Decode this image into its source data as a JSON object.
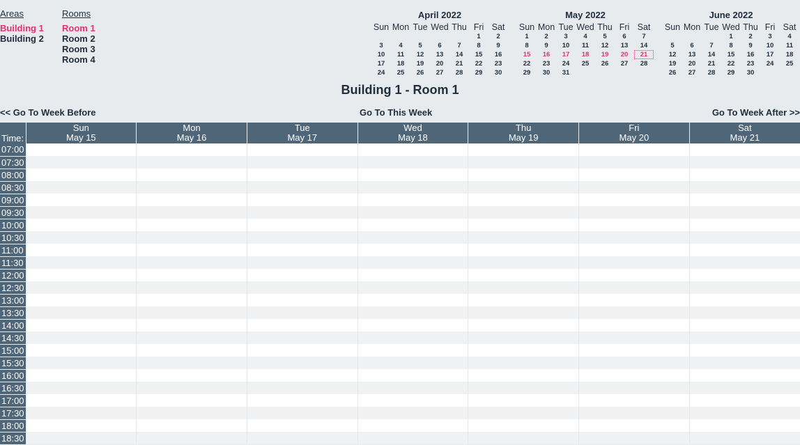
{
  "areas": {
    "header": "Areas",
    "items": [
      {
        "label": "Building 1",
        "selected": true
      },
      {
        "label": "Building 2",
        "selected": false
      }
    ]
  },
  "rooms": {
    "header": "Rooms",
    "items": [
      {
        "label": "Room 1",
        "selected": true
      },
      {
        "label": "Room 2",
        "selected": false
      },
      {
        "label": "Room 3",
        "selected": false
      },
      {
        "label": "Room 4",
        "selected": false
      }
    ]
  },
  "calendars": [
    {
      "title": "April 2022",
      "weekdays": [
        "Sun",
        "Mon",
        "Tue",
        "Wed",
        "Thu",
        "Fri",
        "Sat"
      ],
      "weeks": [
        [
          "",
          "",
          "",
          "",
          "",
          "1",
          "2"
        ],
        [
          "3",
          "4",
          "5",
          "6",
          "7",
          "8",
          "9"
        ],
        [
          "10",
          "11",
          "12",
          "13",
          "14",
          "15",
          "16"
        ],
        [
          "17",
          "18",
          "19",
          "20",
          "21",
          "22",
          "23"
        ],
        [
          "24",
          "25",
          "26",
          "27",
          "28",
          "29",
          "30"
        ]
      ],
      "highlight_week": -1,
      "today": null
    },
    {
      "title": "May 2022",
      "weekdays": [
        "Sun",
        "Mon",
        "Tue",
        "Wed",
        "Thu",
        "Fri",
        "Sat"
      ],
      "weeks": [
        [
          "1",
          "2",
          "3",
          "4",
          "5",
          "6",
          "7"
        ],
        [
          "8",
          "9",
          "10",
          "11",
          "12",
          "13",
          "14"
        ],
        [
          "15",
          "16",
          "17",
          "18",
          "19",
          "20",
          "21"
        ],
        [
          "22",
          "23",
          "24",
          "25",
          "26",
          "27",
          "28"
        ],
        [
          "29",
          "30",
          "31",
          "",
          "",
          "",
          ""
        ]
      ],
      "highlight_week": 2,
      "today": "21"
    },
    {
      "title": "June 2022",
      "weekdays": [
        "Sun",
        "Mon",
        "Tue",
        "Wed",
        "Thu",
        "Fri",
        "Sat"
      ],
      "weeks": [
        [
          "",
          "",
          "",
          "1",
          "2",
          "3",
          "4"
        ],
        [
          "5",
          "6",
          "7",
          "8",
          "9",
          "10",
          "11"
        ],
        [
          "12",
          "13",
          "14",
          "15",
          "16",
          "17",
          "18"
        ],
        [
          "19",
          "20",
          "21",
          "22",
          "23",
          "24",
          "25"
        ],
        [
          "26",
          "27",
          "28",
          "29",
          "30",
          "",
          ""
        ]
      ],
      "highlight_week": -1,
      "today": null
    }
  ],
  "page_title": "Building 1 - Room 1",
  "week_nav": {
    "before": "<< Go To Week Before",
    "this_week": "Go To This Week",
    "after": "Go To Week After >>"
  },
  "grid": {
    "time_header": "Time:",
    "days": [
      {
        "dow": "Sun",
        "date": "May 15"
      },
      {
        "dow": "Mon",
        "date": "May 16"
      },
      {
        "dow": "Tue",
        "date": "May 17"
      },
      {
        "dow": "Wed",
        "date": "May 18"
      },
      {
        "dow": "Thu",
        "date": "May 19"
      },
      {
        "dow": "Fri",
        "date": "May 20"
      },
      {
        "dow": "Sat",
        "date": "May 21"
      }
    ],
    "times": [
      "07:00",
      "07:30",
      "08:00",
      "08:30",
      "09:00",
      "09:30",
      "10:00",
      "10:30",
      "11:00",
      "11:30",
      "12:00",
      "12:30",
      "13:00",
      "13:30",
      "14:00",
      "14:30",
      "15:00",
      "15:30",
      "16:00",
      "16:30",
      "17:00",
      "17:30",
      "18:00",
      "18:30"
    ]
  },
  "colors": {
    "accent": "#e2336b",
    "header_bg": "#4f6578",
    "page_bg": "#e8ebee"
  }
}
